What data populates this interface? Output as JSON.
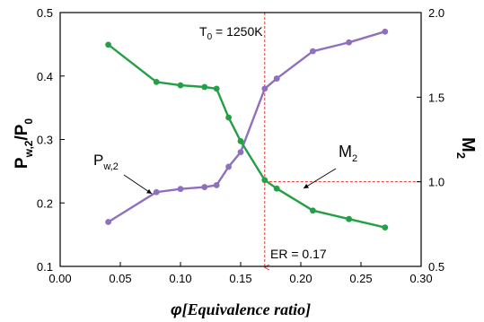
{
  "chart_data": {
    "type": "line",
    "xlim": [
      0.0,
      0.3
    ],
    "x_ticks": [
      "0.00",
      "0.05",
      "0.10",
      "0.15",
      "0.20",
      "0.25",
      "0.30"
    ],
    "xlabel": {
      "symbol": "φ",
      "text": "[Equivalence ratio]"
    },
    "y_left": {
      "lim": [
        0.1,
        0.5
      ],
      "ticks": [
        "0.1",
        "0.2",
        "0.3",
        "0.4",
        "0.5"
      ],
      "label": {
        "main": "P",
        "sub": "w,2",
        "rest": "/P",
        "sub2": "0"
      }
    },
    "y_right": {
      "lim": [
        0.5,
        2.0
      ],
      "ticks": [
        "0.5",
        "1.0",
        "1.5",
        "2.0"
      ],
      "label": {
        "main": "M",
        "sub": "2"
      }
    },
    "series": [
      {
        "label": {
          "main": "P",
          "sub": "w,2"
        },
        "axis": "left",
        "color": "#8f6fbf",
        "x": [
          0.04,
          0.08,
          0.1,
          0.12,
          0.13,
          0.14,
          0.15,
          0.17,
          0.18,
          0.21,
          0.24,
          0.27
        ],
        "y": [
          0.17,
          0.217,
          0.222,
          0.225,
          0.228,
          0.257,
          0.28,
          0.38,
          0.396,
          0.439,
          0.453,
          0.47
        ]
      },
      {
        "label": {
          "main": "M",
          "sub": "2"
        },
        "axis": "right",
        "color": "#22a046",
        "x": [
          0.04,
          0.08,
          0.1,
          0.12,
          0.13,
          0.14,
          0.15,
          0.17,
          0.18,
          0.21,
          0.24,
          0.27
        ],
        "y": [
          1.81,
          1.59,
          1.57,
          1.56,
          1.55,
          1.38,
          1.24,
          1.01,
          0.96,
          0.83,
          0.78,
          0.73
        ]
      }
    ],
    "reference": {
      "color": "#e8332a",
      "er_x": 0.17,
      "m2_level": 1.0,
      "er_label": "ER = 0.17"
    },
    "annotation": {
      "text": "T",
      "sub": "0",
      "rest": " = 1250K"
    }
  }
}
